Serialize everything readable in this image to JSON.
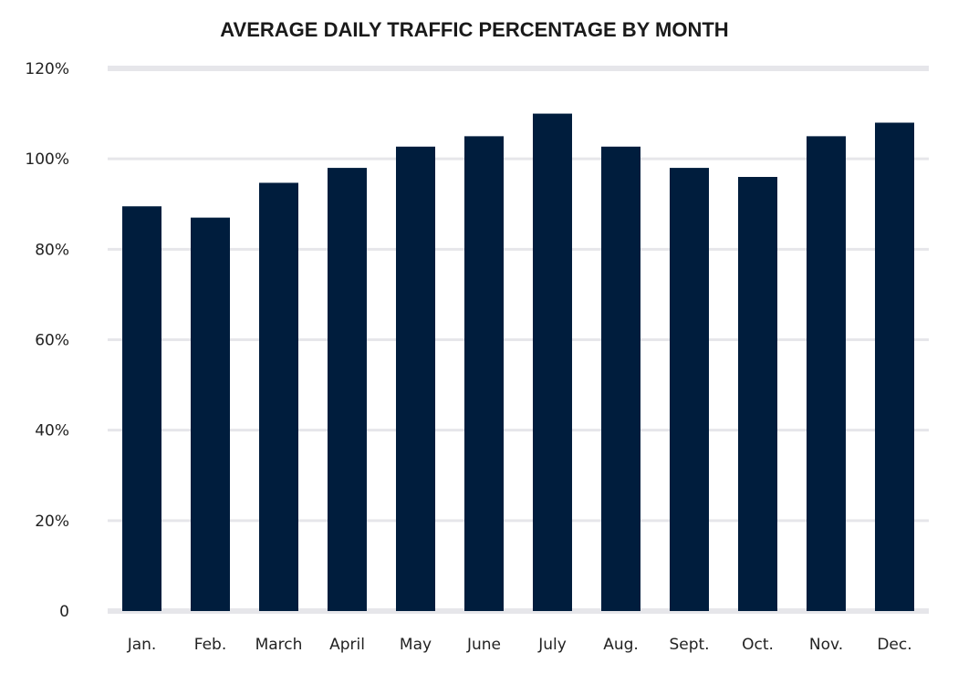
{
  "chart_data": {
    "type": "bar",
    "title": "AVERAGE DAILY TRAFFIC PERCENTAGE BY MONTH",
    "xlabel": "",
    "ylabel": "",
    "categories": [
      "Jan.",
      "Feb.",
      "March",
      "April",
      "May",
      "June",
      "July",
      "Aug.",
      "Sept.",
      "Oct.",
      "Nov.",
      "Dec."
    ],
    "values": [
      89.5,
      87,
      94.7,
      98,
      102.7,
      105,
      110,
      102.7,
      98,
      96,
      105,
      108
    ],
    "ylim": [
      0,
      120
    ],
    "yticks": [
      0,
      20,
      40,
      60,
      80,
      100,
      120
    ],
    "ytick_labels": [
      "0",
      "20%",
      "40%",
      "60%",
      "80%",
      "100%",
      "120%"
    ],
    "grid": true,
    "legend": "none",
    "colors": {
      "bar": "#001d3d",
      "grid": "#e6e6ea"
    }
  }
}
